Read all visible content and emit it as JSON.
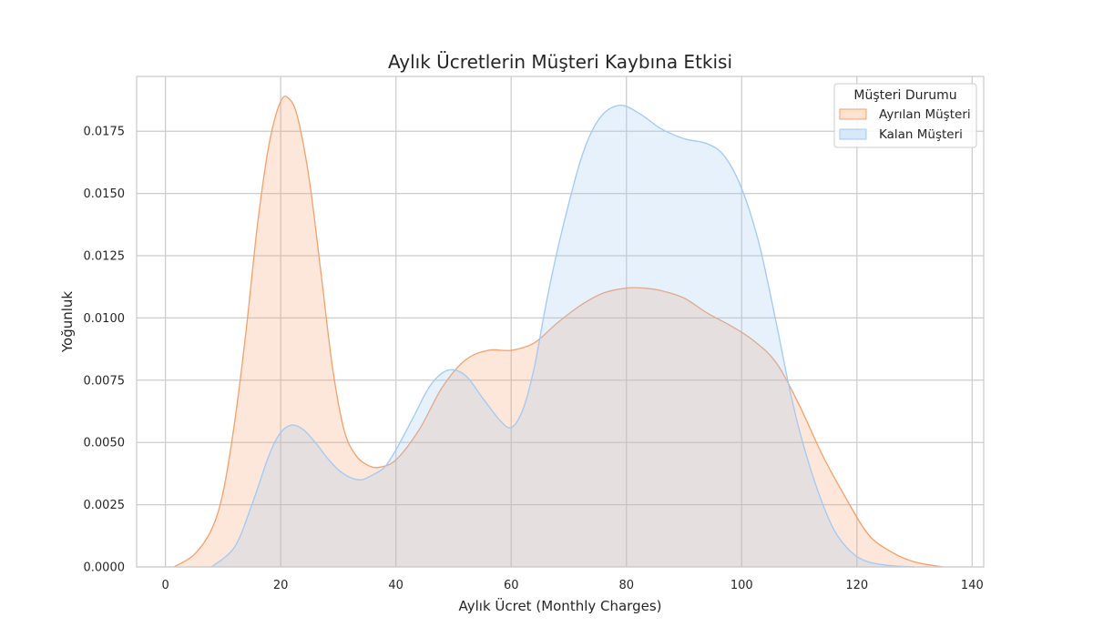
{
  "chart_data": {
    "type": "area",
    "title": "Aylık Ücretlerin Müşteri Kaybına Etkisi",
    "xlabel": "Aylık Ücret (Monthly Charges)",
    "ylabel": "Yoğunluk",
    "xlim": [
      -5,
      142
    ],
    "ylim": [
      0,
      0.0197
    ],
    "xticks": [
      0,
      20,
      40,
      60,
      80,
      100,
      120,
      140
    ],
    "yticks": [
      0.0,
      0.0025,
      0.005,
      0.0075,
      0.01,
      0.0125,
      0.015,
      0.0175
    ],
    "ytick_labels": [
      "0.0000",
      "0.0025",
      "0.0050",
      "0.0075",
      "0.0100",
      "0.0125",
      "0.0150",
      "0.0175"
    ],
    "grid": true,
    "legend": {
      "title": "Müşteri Durumu",
      "placement": "top-right"
    },
    "series": [
      {
        "name": "Ayrılan Müşteri",
        "color": "#f4a06b",
        "fill": "#fde3d1",
        "x": [
          1.5,
          5,
          8,
          10,
          12,
          14,
          16,
          18,
          20,
          21.5,
          23,
          25,
          27,
          29,
          31,
          33,
          35,
          37,
          40,
          44,
          48,
          52,
          56,
          60,
          64,
          68,
          72,
          76,
          80,
          83,
          86,
          90,
          94,
          98,
          102,
          106,
          110,
          114,
          118,
          122,
          126,
          130,
          135
        ],
        "y": [
          0.0,
          0.0005,
          0.0015,
          0.003,
          0.0058,
          0.0095,
          0.0138,
          0.017,
          0.0187,
          0.0188,
          0.018,
          0.0155,
          0.0118,
          0.008,
          0.0055,
          0.0045,
          0.0041,
          0.004,
          0.0043,
          0.0055,
          0.0072,
          0.0083,
          0.0087,
          0.0087,
          0.009,
          0.0098,
          0.0105,
          0.011,
          0.0112,
          0.0112,
          0.0111,
          0.0108,
          0.0102,
          0.0097,
          0.0091,
          0.0082,
          0.0065,
          0.0045,
          0.0028,
          0.0013,
          0.0006,
          0.0002,
          0.0
        ]
      },
      {
        "name": "Kalan Müşteri",
        "color": "#a1c9f4",
        "fill": "#d7e8f8",
        "x": [
          8,
          12,
          15,
          18,
          20,
          22,
          24,
          26,
          28,
          30,
          32,
          34,
          36,
          38,
          40,
          43,
          46,
          49,
          52,
          55,
          58,
          60,
          62,
          64,
          66,
          68,
          70,
          72,
          74,
          76,
          78,
          80,
          83,
          86,
          90,
          94,
          97,
          100,
          103,
          106,
          108,
          110,
          113,
          116,
          119,
          122,
          126,
          130
        ],
        "y": [
          0.0,
          0.0008,
          0.0025,
          0.0045,
          0.0054,
          0.0057,
          0.0055,
          0.005,
          0.0044,
          0.0039,
          0.0036,
          0.0035,
          0.0037,
          0.004,
          0.0047,
          0.006,
          0.0073,
          0.0079,
          0.0077,
          0.0068,
          0.0059,
          0.0056,
          0.0063,
          0.008,
          0.0105,
          0.0127,
          0.0146,
          0.0163,
          0.0175,
          0.0182,
          0.0185,
          0.0185,
          0.0181,
          0.0176,
          0.0172,
          0.017,
          0.0165,
          0.0152,
          0.013,
          0.0098,
          0.0075,
          0.0055,
          0.0032,
          0.0015,
          0.0006,
          0.0002,
          5e-05,
          0.0
        ]
      }
    ]
  }
}
